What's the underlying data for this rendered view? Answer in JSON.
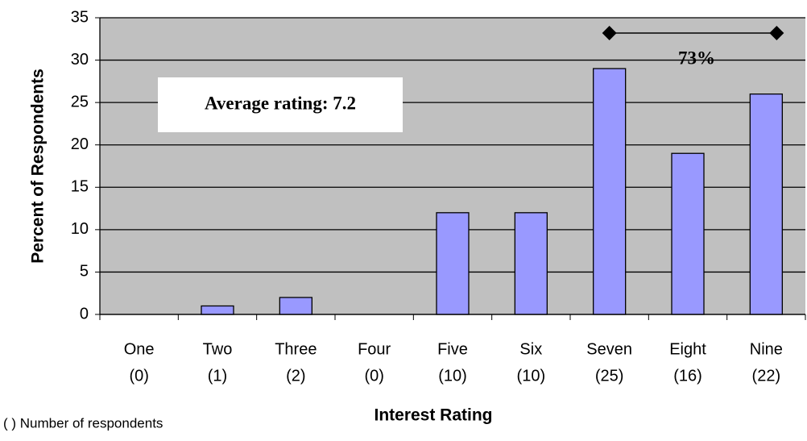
{
  "chart_data": {
    "type": "bar",
    "x_label": "Interest Rating",
    "y_label": "Percent of Respondents",
    "categories": [
      "One",
      "Two",
      "Three",
      "Four",
      "Five",
      "Six",
      "Seven",
      "Eight",
      "Nine"
    ],
    "category_counts": [
      "(0)",
      "(1)",
      "(2)",
      "(0)",
      "(10)",
      "(10)",
      "(25)",
      "(16)",
      "(22)"
    ],
    "values": [
      0,
      1,
      2,
      0,
      12,
      12,
      29,
      19,
      26
    ],
    "color": "#9999ff",
    "ylim": [
      0,
      35
    ],
    "yticks": [
      0,
      5,
      10,
      15,
      20,
      25,
      30,
      35
    ],
    "grid": true,
    "annotations": {
      "average": "Average rating: 7.2",
      "range_share": "73%"
    },
    "footnote": "( ) Number of respondents"
  }
}
